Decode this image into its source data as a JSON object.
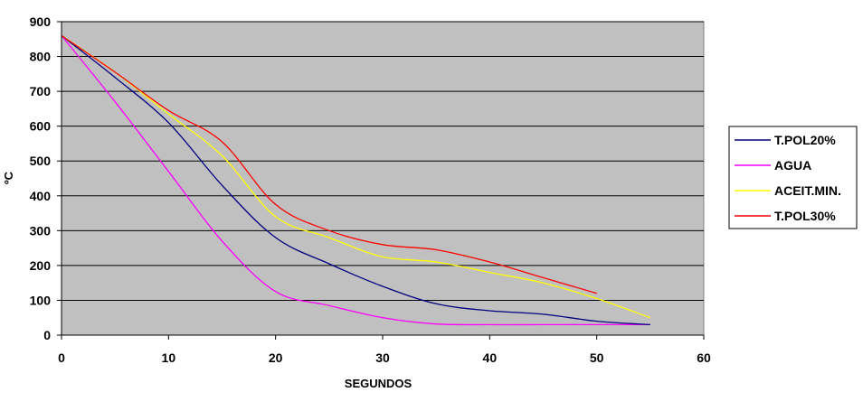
{
  "chart_data": {
    "type": "line",
    "xlabel": "SEGUNDOS",
    "ylabel": "ºC",
    "xlim": [
      0,
      60
    ],
    "ylim": [
      0,
      900
    ],
    "xticks": [
      0,
      10,
      20,
      30,
      40,
      50,
      60
    ],
    "yticks": [
      0,
      100,
      200,
      300,
      400,
      500,
      600,
      700,
      800,
      900
    ],
    "grid": true,
    "legend_position": "right",
    "plot_background": "#c0c0c0",
    "series": [
      {
        "name": "T.POL20%",
        "color": "#000080",
        "points": [
          [
            0,
            860
          ],
          [
            5,
            740
          ],
          [
            10,
            610
          ],
          [
            15,
            430
          ],
          [
            20,
            280
          ],
          [
            25,
            205
          ],
          [
            30,
            140
          ],
          [
            35,
            90
          ],
          [
            40,
            70
          ],
          [
            45,
            60
          ],
          [
            50,
            40
          ],
          [
            55,
            30
          ]
        ]
      },
      {
        "name": "AGUA",
        "color": "#ff00ff",
        "points": [
          [
            0,
            860
          ],
          [
            5,
            670
          ],
          [
            10,
            470
          ],
          [
            15,
            270
          ],
          [
            20,
            125
          ],
          [
            25,
            85
          ],
          [
            30,
            50
          ],
          [
            35,
            32
          ],
          [
            40,
            30
          ],
          [
            45,
            30
          ],
          [
            50,
            30
          ],
          [
            55,
            30
          ]
        ]
      },
      {
        "name": "ACEIT.MIN.",
        "color": "#ffff00",
        "points": [
          [
            0,
            860
          ],
          [
            5,
            755
          ],
          [
            10,
            635
          ],
          [
            15,
            515
          ],
          [
            20,
            340
          ],
          [
            25,
            280
          ],
          [
            30,
            225
          ],
          [
            35,
            210
          ],
          [
            40,
            180
          ],
          [
            45,
            150
          ],
          [
            50,
            105
          ],
          [
            55,
            50
          ]
        ]
      },
      {
        "name": "T.POL30%",
        "color": "#ff0000",
        "points": [
          [
            0,
            860
          ],
          [
            5,
            755
          ],
          [
            10,
            645
          ],
          [
            15,
            555
          ],
          [
            20,
            375
          ],
          [
            25,
            300
          ],
          [
            30,
            260
          ],
          [
            35,
            245
          ],
          [
            40,
            210
          ],
          [
            45,
            165
          ],
          [
            50,
            120
          ]
        ]
      }
    ]
  }
}
